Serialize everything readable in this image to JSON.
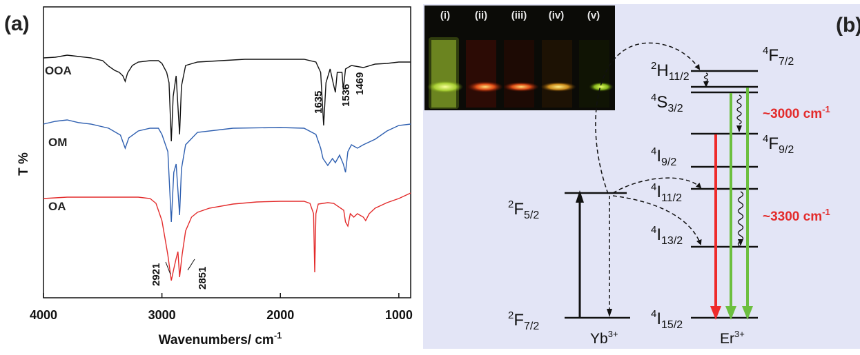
{
  "panel_a": {
    "label": "(a)",
    "chart_data": {
      "type": "line",
      "xlabel_main": "Wavenumbers/ cm",
      "xlabel_sup": "-1",
      "ylabel": "T %",
      "xlim": [
        4000,
        900
      ],
      "x_ticks": [
        4000,
        3000,
        2000,
        1000
      ],
      "series": [
        {
          "name": "OOA",
          "color": "#111111",
          "points": [
            [
              4000,
              74
            ],
            [
              3900,
              73
            ],
            [
              3800,
              70
            ],
            [
              3700,
              72
            ],
            [
              3600,
              74
            ],
            [
              3500,
              78
            ],
            [
              3450,
              86
            ],
            [
              3400,
              92
            ],
            [
              3360,
              95
            ],
            [
              3330,
              100
            ],
            [
              3310,
              108
            ],
            [
              3290,
              96
            ],
            [
              3250,
              85
            ],
            [
              3200,
              80
            ],
            [
              3100,
              78
            ],
            [
              3030,
              78
            ],
            [
              3000,
              82
            ],
            [
              2960,
              95
            ],
            [
              2940,
              110
            ],
            [
              2921,
              195
            ],
            [
              2905,
              130
            ],
            [
              2880,
              100
            ],
            [
              2851,
              185
            ],
            [
              2835,
              115
            ],
            [
              2800,
              85
            ],
            [
              2700,
              80
            ],
            [
              2500,
              78
            ],
            [
              2300,
              76
            ],
            [
              2000,
              76
            ],
            [
              1800,
              76
            ],
            [
              1700,
              80
            ],
            [
              1660,
              95
            ],
            [
              1635,
              172
            ],
            [
              1615,
              110
            ],
            [
              1580,
              90
            ],
            [
              1555,
              110
            ],
            [
              1536,
              124
            ],
            [
              1520,
              95
            ],
            [
              1480,
              95
            ],
            [
              1469,
              120
            ],
            [
              1450,
              90
            ],
            [
              1400,
              85
            ],
            [
              1300,
              88
            ],
            [
              1200,
              83
            ],
            [
              1100,
              82
            ],
            [
              1000,
              80
            ],
            [
              900,
              80
            ]
          ]
        },
        {
          "name": "OM",
          "color": "#2e5fb0",
          "points": [
            [
              4000,
              170
            ],
            [
              3900,
              166
            ],
            [
              3800,
              164
            ],
            [
              3700,
              168
            ],
            [
              3600,
              170
            ],
            [
              3450,
              176
            ],
            [
              3350,
              186
            ],
            [
              3310,
              205
            ],
            [
              3280,
              190
            ],
            [
              3200,
              180
            ],
            [
              3100,
              176
            ],
            [
              3030,
              176
            ],
            [
              3000,
              185
            ],
            [
              2950,
              210
            ],
            [
              2921,
              312
            ],
            [
              2900,
              240
            ],
            [
              2880,
              228
            ],
            [
              2851,
              302
            ],
            [
              2835,
              235
            ],
            [
              2800,
              200
            ],
            [
              2700,
              182
            ],
            [
              2400,
              176
            ],
            [
              2000,
              175
            ],
            [
              1800,
              176
            ],
            [
              1700,
              185
            ],
            [
              1660,
              205
            ],
            [
              1640,
              220
            ],
            [
              1600,
              230
            ],
            [
              1560,
              220
            ],
            [
              1536,
              226
            ],
            [
              1500,
              215
            ],
            [
              1469,
              228
            ],
            [
              1450,
              240
            ],
            [
              1430,
              210
            ],
            [
              1400,
              200
            ],
            [
              1350,
              205
            ],
            [
              1300,
              200
            ],
            [
              1200,
              192
            ],
            [
              1100,
              180
            ],
            [
              1000,
              172
            ],
            [
              900,
              170
            ]
          ]
        },
        {
          "name": "OA",
          "color": "#e32b2b",
          "points": [
            [
              4000,
              278
            ],
            [
              3800,
              276
            ],
            [
              3600,
              276
            ],
            [
              3400,
              276
            ],
            [
              3200,
              276
            ],
            [
              3100,
              278
            ],
            [
              3050,
              285
            ],
            [
              3000,
              310
            ],
            [
              2970,
              340
            ],
            [
              2950,
              360
            ],
            [
              2921,
              397
            ],
            [
              2900,
              380
            ],
            [
              2880,
              365
            ],
            [
              2865,
              355
            ],
            [
              2851,
              392
            ],
            [
              2830,
              360
            ],
            [
              2800,
              325
            ],
            [
              2750,
              305
            ],
            [
              2700,
              298
            ],
            [
              2600,
              292
            ],
            [
              2400,
              286
            ],
            [
              2200,
              283
            ],
            [
              2000,
              282
            ],
            [
              1800,
              282
            ],
            [
              1750,
              285
            ],
            [
              1720,
              300
            ],
            [
              1710,
              385
            ],
            [
              1700,
              300
            ],
            [
              1680,
              286
            ],
            [
              1600,
              284
            ],
            [
              1550,
              285
            ],
            [
              1465,
              295
            ],
            [
              1450,
              312
            ],
            [
              1430,
              318
            ],
            [
              1410,
              300
            ],
            [
              1380,
              305
            ],
            [
              1350,
              300
            ],
            [
              1300,
              305
            ],
            [
              1280,
              310
            ],
            [
              1250,
              300
            ],
            [
              1200,
              292
            ],
            [
              1100,
              284
            ],
            [
              1000,
              278
            ],
            [
              900,
              270
            ]
          ]
        }
      ],
      "annotations": [
        "2921",
        "2851",
        "1635",
        "1536",
        "1469"
      ]
    }
  },
  "panel_b": {
    "label": "(b)",
    "vials": [
      "(i)",
      "(ii)",
      "(iii)",
      "(iv)",
      "(v)"
    ],
    "yb_levels": [
      {
        "main": "F",
        "pre": "2",
        "sub": "5/2"
      },
      {
        "main": "F",
        "pre": "2",
        "sub": "7/2"
      }
    ],
    "er_levels": [
      {
        "main": "F",
        "pre": "4",
        "sub": "7/2"
      },
      {
        "main": "H",
        "pre": "2",
        "sub": "11/2"
      },
      {
        "main": "S",
        "pre": "4",
        "sub": "3/2"
      },
      {
        "main": "F",
        "pre": "4",
        "sub": "9/2"
      },
      {
        "main": "I",
        "pre": "4",
        "sub": "9/2"
      },
      {
        "main": "I",
        "pre": "4",
        "sub": "11/2"
      },
      {
        "main": "I",
        "pre": "4",
        "sub": "13/2"
      },
      {
        "main": "I",
        "pre": "4",
        "sub": "15/2"
      }
    ],
    "ion_yb": {
      "main": "Yb",
      "sup": "3+"
    },
    "ion_er": {
      "main": "Er",
      "sup": "3+"
    },
    "gap_1": {
      "main": "~3000 cm",
      "sup": "-1"
    },
    "gap_2": {
      "main": "~3300 cm",
      "sup": "-1"
    },
    "colors": {
      "green": "#6cbf3f",
      "red": "#ee2b2b",
      "gap_text": "#e32b2b"
    }
  }
}
